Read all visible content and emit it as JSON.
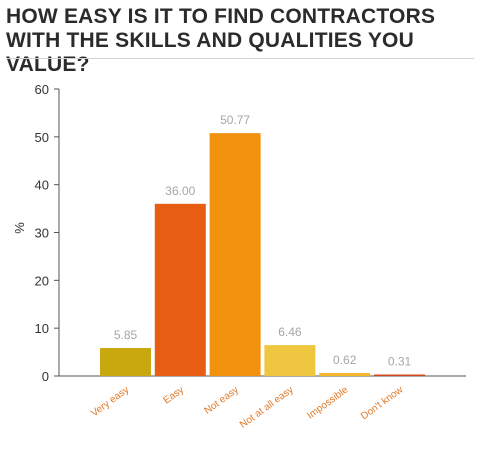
{
  "chart_data": {
    "type": "bar",
    "title": "HOW EASY IS IT TO FIND CONTRACTORS WITH THE SKILLS AND QUALITIES YOU VALUE?",
    "ylabel": "%",
    "xlabel": "",
    "ylim": [
      0,
      60
    ],
    "yticks": [
      0,
      10,
      20,
      30,
      40,
      50,
      60
    ],
    "grid": false,
    "categories": [
      "Very easy",
      "Easy",
      "Not easy",
      "Not at all easy",
      "Impossible",
      "Don't know"
    ],
    "values": [
      5.85,
      36.0,
      50.77,
      6.46,
      0.62,
      0.31
    ],
    "value_labels": [
      "5.85",
      "36.00",
      "50.77",
      "6.46",
      "0.62",
      "0.31"
    ],
    "colors": [
      "#c9a80f",
      "#e85d14",
      "#f2920c",
      "#efc63f",
      "#f5b72a",
      "#d1481c"
    ]
  }
}
